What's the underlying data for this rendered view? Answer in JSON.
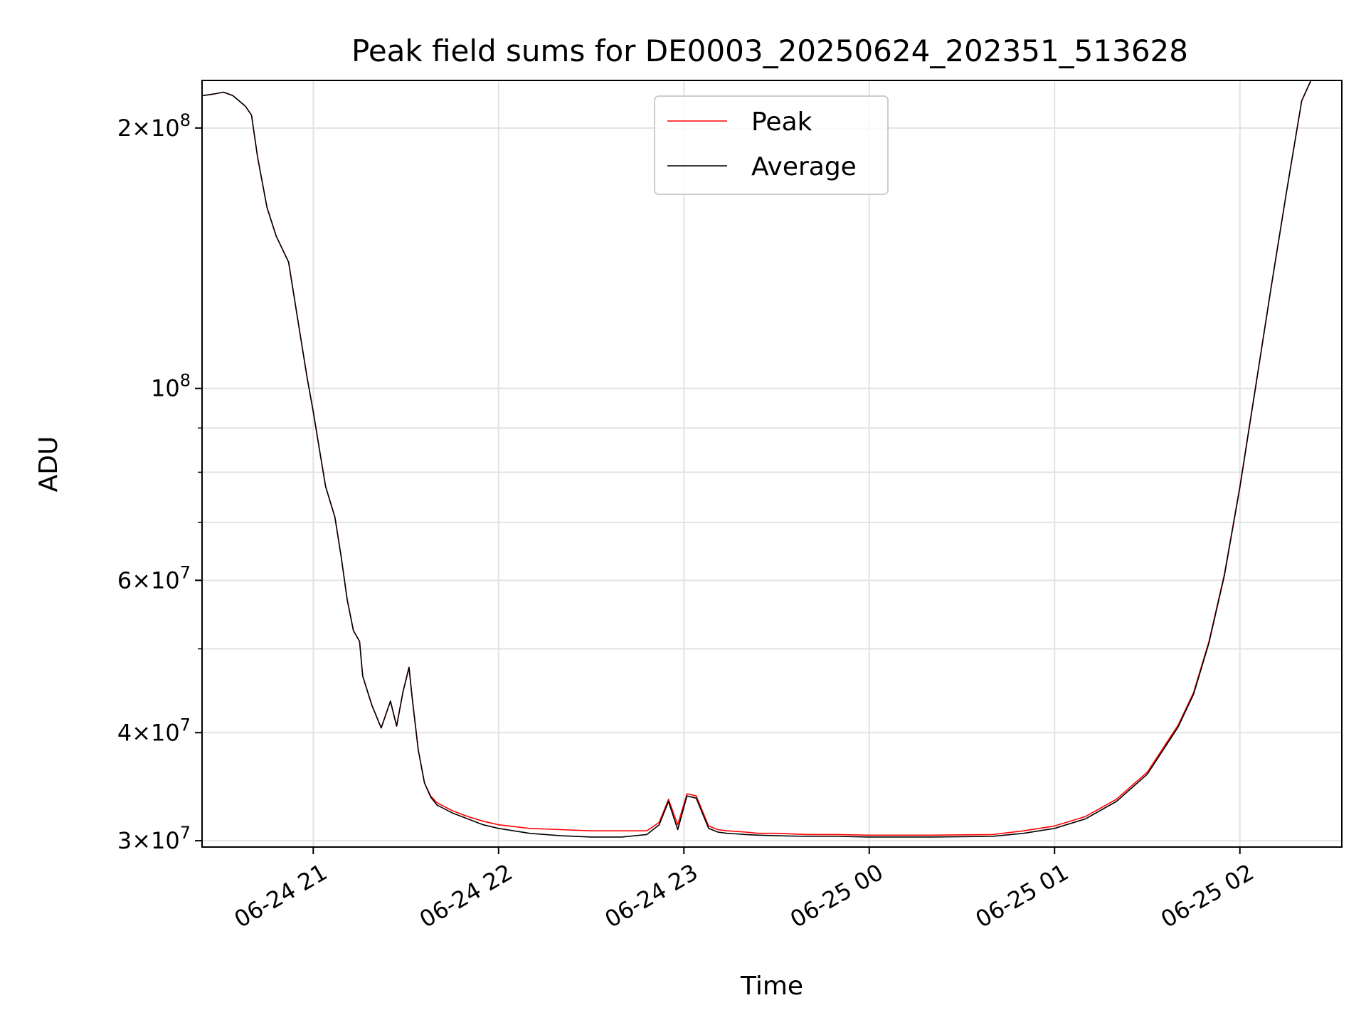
{
  "chart_data": {
    "type": "line",
    "title": "Peak field sums for DE0003_20250624_202351_513628",
    "xlabel": "Time",
    "ylabel": "ADU",
    "yscale": "log",
    "grid": true,
    "legend_position": "top-center",
    "xlim": [
      "2025-06-24 20:24",
      "2025-06-25 02:33"
    ],
    "ylim": [
      29500000,
      227000000
    ],
    "x_ticks": [
      {
        "label": "06-24 21",
        "value": "2025-06-24 21:00"
      },
      {
        "label": "06-24 22",
        "value": "2025-06-24 22:00"
      },
      {
        "label": "06-24 23",
        "value": "2025-06-24 23:00"
      },
      {
        "label": "06-25 00",
        "value": "2025-06-25 00:00"
      },
      {
        "label": "06-25 01",
        "value": "2025-06-25 01:00"
      },
      {
        "label": "06-25 02",
        "value": "2025-06-25 02:00"
      }
    ],
    "y_major_ticks": [
      {
        "mant": "3",
        "exp": "7",
        "value": 30000000
      },
      {
        "mant": "4",
        "exp": "7",
        "value": 40000000
      },
      {
        "mant": "6",
        "exp": "7",
        "value": 60000000
      },
      {
        "mant": "",
        "exp": "8",
        "value": 100000000
      },
      {
        "mant": "2",
        "exp": "8",
        "value": 200000000
      }
    ],
    "y_minor_values": [
      50000000,
      70000000,
      80000000,
      90000000
    ],
    "series": [
      {
        "name": "Peak",
        "color": "#ff0000",
        "x": [
          "2025-06-24 20:24",
          "2025-06-24 20:28",
          "2025-06-24 20:31",
          "2025-06-24 20:34",
          "2025-06-24 20:38",
          "2025-06-24 20:40",
          "2025-06-24 20:42",
          "2025-06-24 20:45",
          "2025-06-24 20:48",
          "2025-06-24 20:52",
          "2025-06-24 20:55",
          "2025-06-24 20:58",
          "2025-06-24 21:00",
          "2025-06-24 21:02",
          "2025-06-24 21:04",
          "2025-06-24 21:07",
          "2025-06-24 21:09",
          "2025-06-24 21:11",
          "2025-06-24 21:13",
          "2025-06-24 21:15",
          "2025-06-24 21:16",
          "2025-06-24 21:19",
          "2025-06-24 21:22",
          "2025-06-24 21:25",
          "2025-06-24 21:27",
          "2025-06-24 21:29",
          "2025-06-24 21:31",
          "2025-06-24 21:32",
          "2025-06-24 21:34",
          "2025-06-24 21:36",
          "2025-06-24 21:38",
          "2025-06-24 21:40",
          "2025-06-24 21:45",
          "2025-06-24 21:50",
          "2025-06-24 21:55",
          "2025-06-24 22:00",
          "2025-06-24 22:10",
          "2025-06-24 22:20",
          "2025-06-24 22:30",
          "2025-06-24 22:40",
          "2025-06-24 22:48",
          "2025-06-24 22:52",
          "2025-06-24 22:55",
          "2025-06-24 22:58",
          "2025-06-24 23:01",
          "2025-06-24 23:04",
          "2025-06-24 23:08",
          "2025-06-24 23:11",
          "2025-06-24 23:14",
          "2025-06-24 23:17",
          "2025-06-24 23:20",
          "2025-06-24 23:24",
          "2025-06-24 23:30",
          "2025-06-24 23:40",
          "2025-06-24 23:50",
          "2025-06-25 00:00",
          "2025-06-25 00:20",
          "2025-06-25 00:40",
          "2025-06-25 00:50",
          "2025-06-25 01:00",
          "2025-06-25 01:10",
          "2025-06-25 01:20",
          "2025-06-25 01:30",
          "2025-06-25 01:40",
          "2025-06-25 01:45",
          "2025-06-25 01:50",
          "2025-06-25 01:55",
          "2025-06-25 02:00",
          "2025-06-25 02:05",
          "2025-06-25 02:10",
          "2025-06-25 02:15",
          "2025-06-25 02:20",
          "2025-06-25 02:23"
        ],
        "y": [
          218000000,
          219000000,
          220000000,
          218000000,
          212000000,
          207000000,
          185000000,
          162000000,
          150000000,
          140000000,
          120000000,
          103000000,
          94000000,
          85000000,
          77000000,
          71000000,
          64000000,
          57000000,
          52500000,
          51000000,
          46500000,
          43000000,
          40500000,
          43500000,
          40700000,
          44500000,
          47600000,
          44000000,
          38200000,
          35000000,
          33800000,
          33200000,
          32500000,
          32000000,
          31600000,
          31300000,
          31000000,
          30900000,
          30800000,
          30800000,
          30800000,
          31500000,
          33500000,
          31300000,
          34000000,
          33800000,
          31200000,
          30900000,
          30800000,
          30750000,
          30700000,
          30600000,
          30600000,
          30500000,
          30500000,
          30450000,
          30450000,
          30500000,
          30800000,
          31200000,
          32000000,
          33500000,
          36000000,
          40800000,
          44500000,
          51000000,
          61000000,
          77000000,
          100000000,
          130000000,
          168000000,
          215000000,
          227000000
        ]
      },
      {
        "name": "Average",
        "color": "#000000",
        "x": [
          "2025-06-24 20:24",
          "2025-06-24 20:28",
          "2025-06-24 20:31",
          "2025-06-24 20:34",
          "2025-06-24 20:38",
          "2025-06-24 20:40",
          "2025-06-24 20:42",
          "2025-06-24 20:45",
          "2025-06-24 20:48",
          "2025-06-24 20:52",
          "2025-06-24 20:55",
          "2025-06-24 20:58",
          "2025-06-24 21:00",
          "2025-06-24 21:02",
          "2025-06-24 21:04",
          "2025-06-24 21:07",
          "2025-06-24 21:09",
          "2025-06-24 21:11",
          "2025-06-24 21:13",
          "2025-06-24 21:15",
          "2025-06-24 21:16",
          "2025-06-24 21:19",
          "2025-06-24 21:22",
          "2025-06-24 21:25",
          "2025-06-24 21:27",
          "2025-06-24 21:29",
          "2025-06-24 21:31",
          "2025-06-24 21:32",
          "2025-06-24 21:34",
          "2025-06-24 21:36",
          "2025-06-24 21:38",
          "2025-06-24 21:40",
          "2025-06-24 21:45",
          "2025-06-24 21:50",
          "2025-06-24 21:55",
          "2025-06-24 22:00",
          "2025-06-24 22:10",
          "2025-06-24 22:20",
          "2025-06-24 22:30",
          "2025-06-24 22:40",
          "2025-06-24 22:48",
          "2025-06-24 22:52",
          "2025-06-24 22:55",
          "2025-06-24 22:58",
          "2025-06-24 23:01",
          "2025-06-24 23:04",
          "2025-06-24 23:08",
          "2025-06-24 23:11",
          "2025-06-24 23:14",
          "2025-06-24 23:17",
          "2025-06-24 23:20",
          "2025-06-24 23:24",
          "2025-06-24 23:30",
          "2025-06-24 23:40",
          "2025-06-24 23:50",
          "2025-06-25 00:00",
          "2025-06-25 00:20",
          "2025-06-25 00:40",
          "2025-06-25 00:50",
          "2025-06-25 01:00",
          "2025-06-25 01:10",
          "2025-06-25 01:20",
          "2025-06-25 01:30",
          "2025-06-25 01:40",
          "2025-06-25 01:45",
          "2025-06-25 01:50",
          "2025-06-25 01:55",
          "2025-06-25 02:00",
          "2025-06-25 02:05",
          "2025-06-25 02:10",
          "2025-06-25 02:15",
          "2025-06-25 02:20",
          "2025-06-25 02:23"
        ],
        "y": [
          218000000,
          219000000,
          220000000,
          218000000,
          212000000,
          207000000,
          185000000,
          162000000,
          150000000,
          140000000,
          120000000,
          103000000,
          94000000,
          85000000,
          77000000,
          71000000,
          64000000,
          57000000,
          52500000,
          51000000,
          46500000,
          43000000,
          40500000,
          43500000,
          40700000,
          44500000,
          47600000,
          44000000,
          38200000,
          35000000,
          33700000,
          33000000,
          32300000,
          31800000,
          31300000,
          31000000,
          30600000,
          30400000,
          30300000,
          30300000,
          30500000,
          31300000,
          33300000,
          30900000,
          33800000,
          33600000,
          31000000,
          30700000,
          30600000,
          30550000,
          30500000,
          30450000,
          30400000,
          30350000,
          30350000,
          30300000,
          30300000,
          30350000,
          30600000,
          31000000,
          31800000,
          33300000,
          35800000,
          40600000,
          44300000,
          50800000,
          60800000,
          76800000,
          99800000,
          130000000,
          168000000,
          215000000,
          227000000
        ]
      }
    ]
  }
}
